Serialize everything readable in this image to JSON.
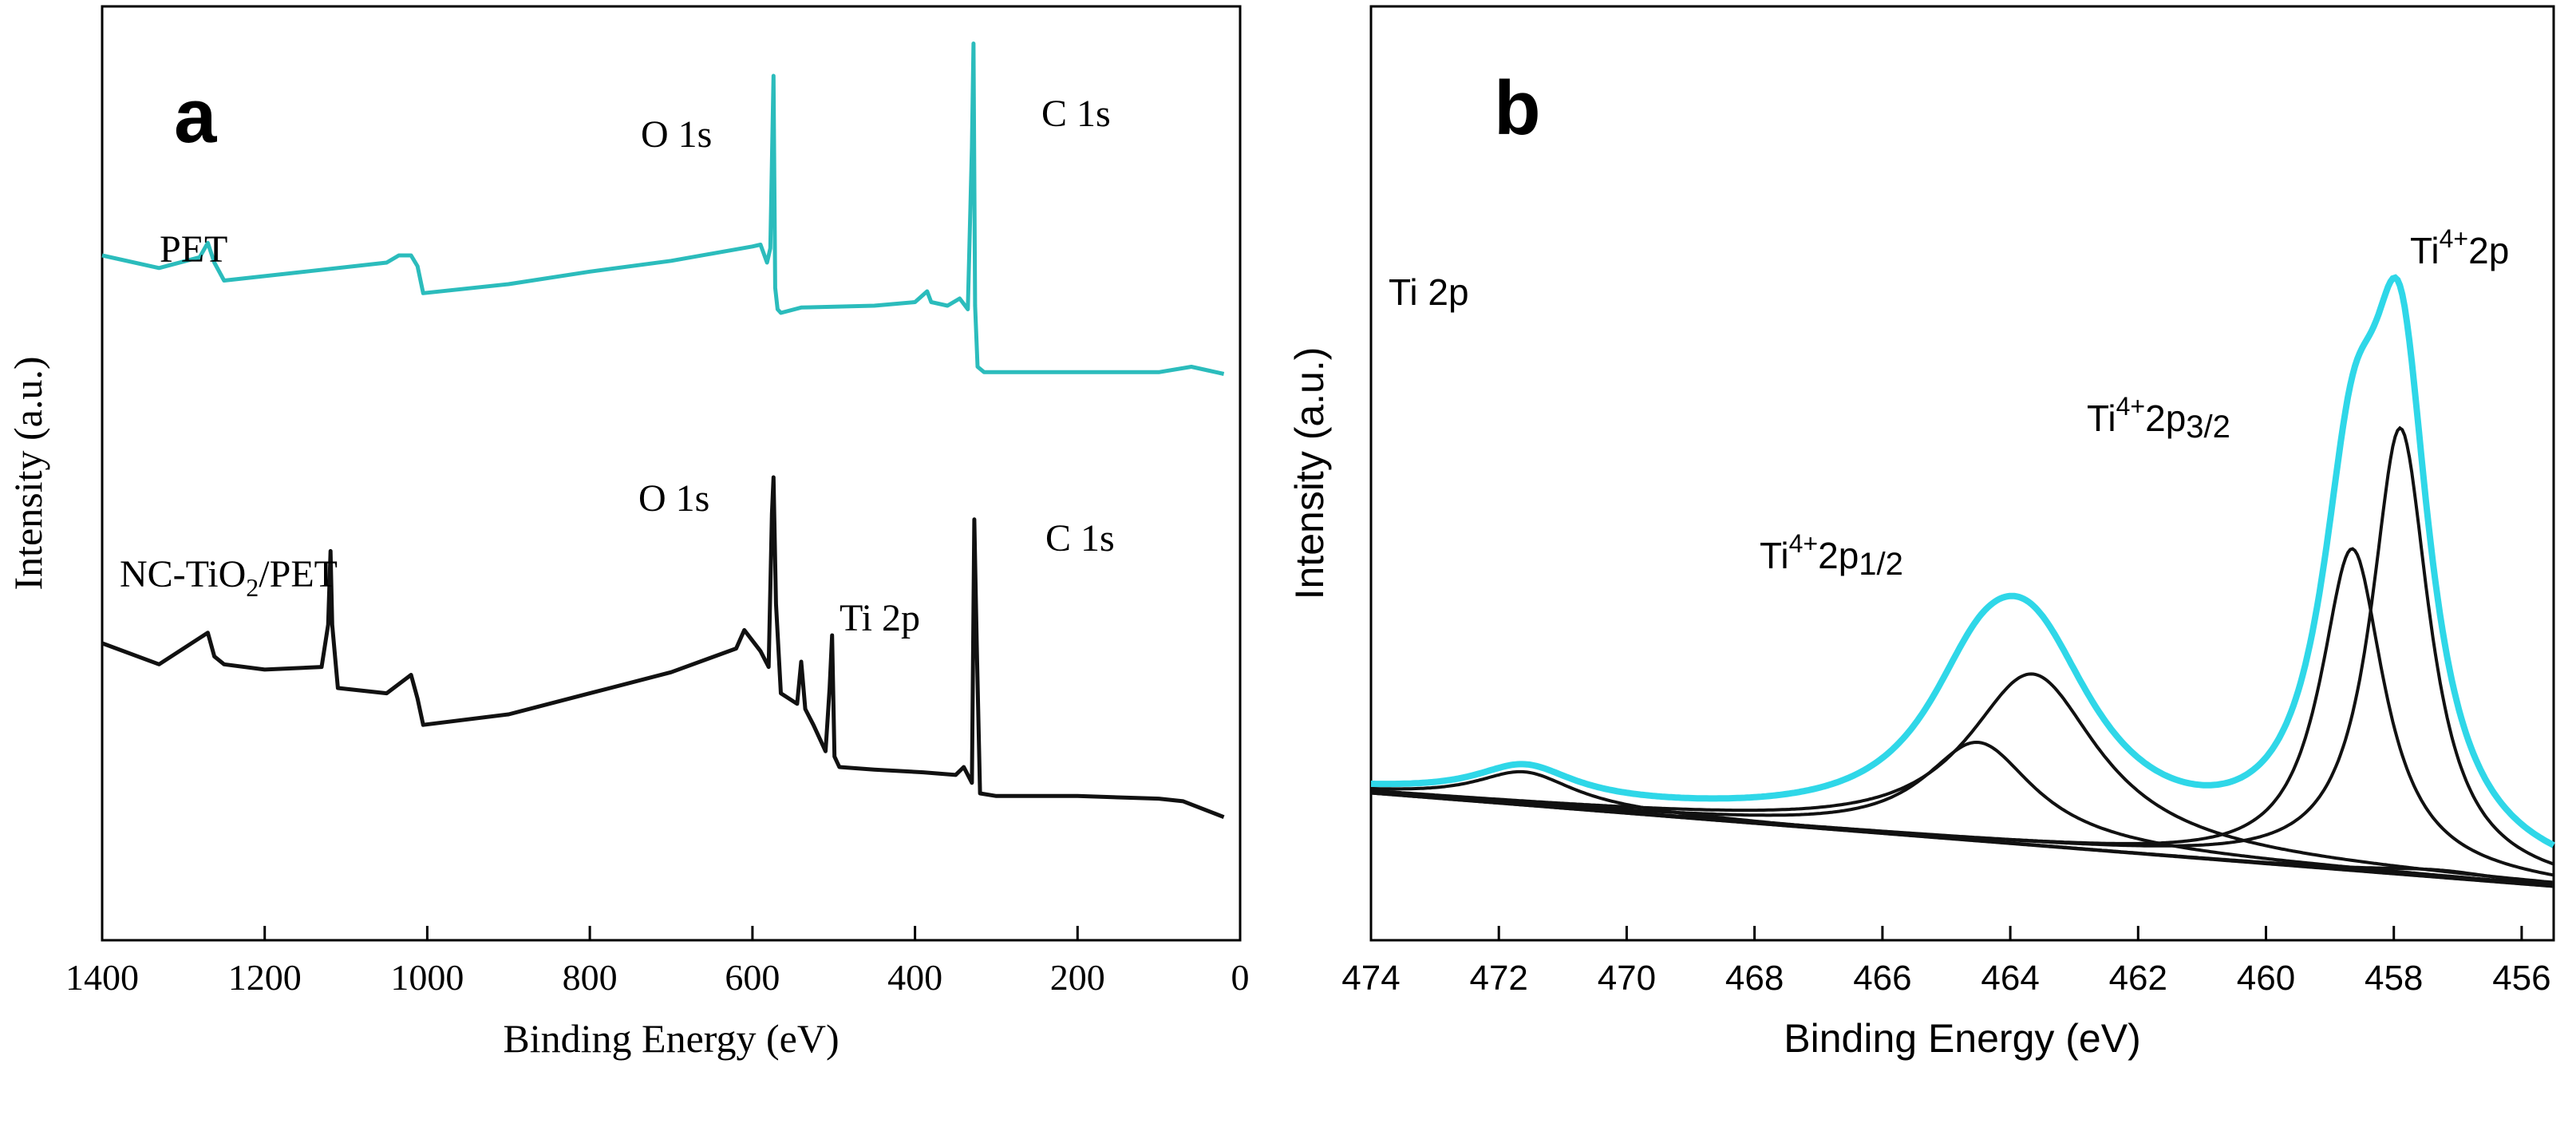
{
  "chart_data": [
    {
      "type": "line",
      "panel_label": "a",
      "xlabel": "Binding Energy (eV)",
      "ylabel": "Intensity (a.u.)",
      "xlim": [
        1400,
        0
      ],
      "xticks": [
        "1400",
        "1200",
        "1000",
        "800",
        "600",
        "400",
        "200",
        "0"
      ],
      "y_units": "arbitrary, baseline-normalized",
      "series": [
        {
          "name": "PET",
          "color": "#2bbcbc",
          "x": [
            1400,
            1330,
            1280,
            1270,
            1262,
            1250,
            1150,
            1050,
            1035,
            1020,
            1012,
            1005,
            900,
            800,
            700,
            650,
            600,
            590,
            582,
            578,
            574,
            572,
            569,
            565,
            540,
            450,
            400,
            385,
            380,
            360,
            345,
            335,
            330,
            328,
            326,
            323,
            315,
            200,
            100,
            60,
            40,
            20
          ],
          "y": [
            5.0,
            4.65,
            4.95,
            5.35,
            4.8,
            4.3,
            4.55,
            4.8,
            5.0,
            5.0,
            4.7,
            3.95,
            4.2,
            4.55,
            4.85,
            5.05,
            5.25,
            5.3,
            4.8,
            5.2,
            10.0,
            4.1,
            3.5,
            3.4,
            3.55,
            3.6,
            3.7,
            4.0,
            3.7,
            3.6,
            3.8,
            3.5,
            8.0,
            10.9,
            3.6,
            1.9,
            1.75,
            1.75,
            1.75,
            1.9,
            1.8,
            1.7
          ]
        },
        {
          "name": "NC-TiO₂/PET",
          "color": "#111111",
          "x": [
            1400,
            1330,
            1270,
            1262,
            1250,
            1200,
            1130,
            1122,
            1119,
            1117,
            1110,
            1050,
            1020,
            1012,
            1005,
            900,
            800,
            700,
            620,
            610,
            590,
            580,
            576,
            574,
            571,
            565,
            545,
            540,
            535,
            525,
            510,
            505,
            502,
            499,
            493,
            450,
            390,
            350,
            340,
            330,
            327,
            324,
            320,
            300,
            240,
            200,
            100,
            70,
            20
          ],
          "y": [
            3.85,
            3.45,
            4.05,
            3.6,
            3.45,
            3.35,
            3.4,
            4.2,
            5.6,
            4.2,
            3.0,
            2.9,
            3.25,
            2.8,
            2.3,
            2.5,
            2.9,
            3.3,
            3.75,
            4.1,
            3.7,
            3.4,
            6.3,
            7.0,
            4.6,
            2.9,
            2.7,
            3.5,
            2.6,
            2.3,
            1.8,
            3.0,
            4.0,
            1.7,
            1.5,
            1.45,
            1.4,
            1.35,
            1.5,
            1.2,
            6.2,
            3.8,
            1.0,
            0.95,
            0.95,
            0.95,
            0.9,
            0.85,
            0.55
          ]
        }
      ],
      "annotations": {
        "pet": "PET",
        "o1s_top": "O 1s",
        "c1s_top": "C 1s",
        "nc_prefix": "NC-TiO",
        "nc_sub": "2",
        "nc_suffix": "/PET",
        "o1s_bottom": "O 1s",
        "ti2p": "Ti 2p",
        "c1s_bottom": "C 1s"
      }
    },
    {
      "type": "line",
      "panel_label": "b",
      "xlabel": "Binding Energy (eV)",
      "ylabel": "Intensity (a.u.)",
      "xlim": [
        474,
        455.5
      ],
      "xticks": [
        "474",
        "472",
        "470",
        "468",
        "466",
        "464",
        "462",
        "460",
        "458",
        "456"
      ],
      "y_units": "arbitrary",
      "background": {
        "linear_start": [
          474,
          10.5
        ],
        "linear_end": [
          455.5,
          1.5
        ]
      },
      "peaks": [
        {
          "name": "Ti4+ 2p3/2 (a)",
          "center": 457.9,
          "height": 43,
          "width": 0.55
        },
        {
          "name": "Ti4+ 2p3/2 (b)",
          "center": 458.65,
          "height": 31,
          "width": 0.6
        },
        {
          "name": "Ti4+ 2p1/2 (a)",
          "center": 463.65,
          "height": 16.5,
          "width": 1.25
        },
        {
          "name": "Ti4+ 2p1/2 (b)",
          "center": 464.5,
          "height": 9.5,
          "width": 1.05
        },
        {
          "name": "satellite",
          "center": 471.6,
          "height": 3.2,
          "width": 0.95
        },
        {
          "name": "small satellite",
          "center": 457.3,
          "height": 0.7,
          "width": 1.2
        }
      ],
      "series": [
        {
          "name": "Envelope (measured)",
          "color": "#2fd7e8"
        },
        {
          "name": "Fitted components",
          "color": "#111111"
        },
        {
          "name": "Background",
          "color": "#111111"
        }
      ],
      "annotations": {
        "ti2p": "Ti 2p",
        "top_pre": "Ti",
        "top_sup": "4+",
        "top_post": "2p",
        "p32_pre": "Ti",
        "p32_sup": "4+",
        "p32_mid": "2p",
        "p32_sub": "3/2",
        "p12_pre": "Ti",
        "p12_sup": "4+",
        "p12_mid": "2p",
        "p12_sub": "1/2"
      }
    }
  ]
}
